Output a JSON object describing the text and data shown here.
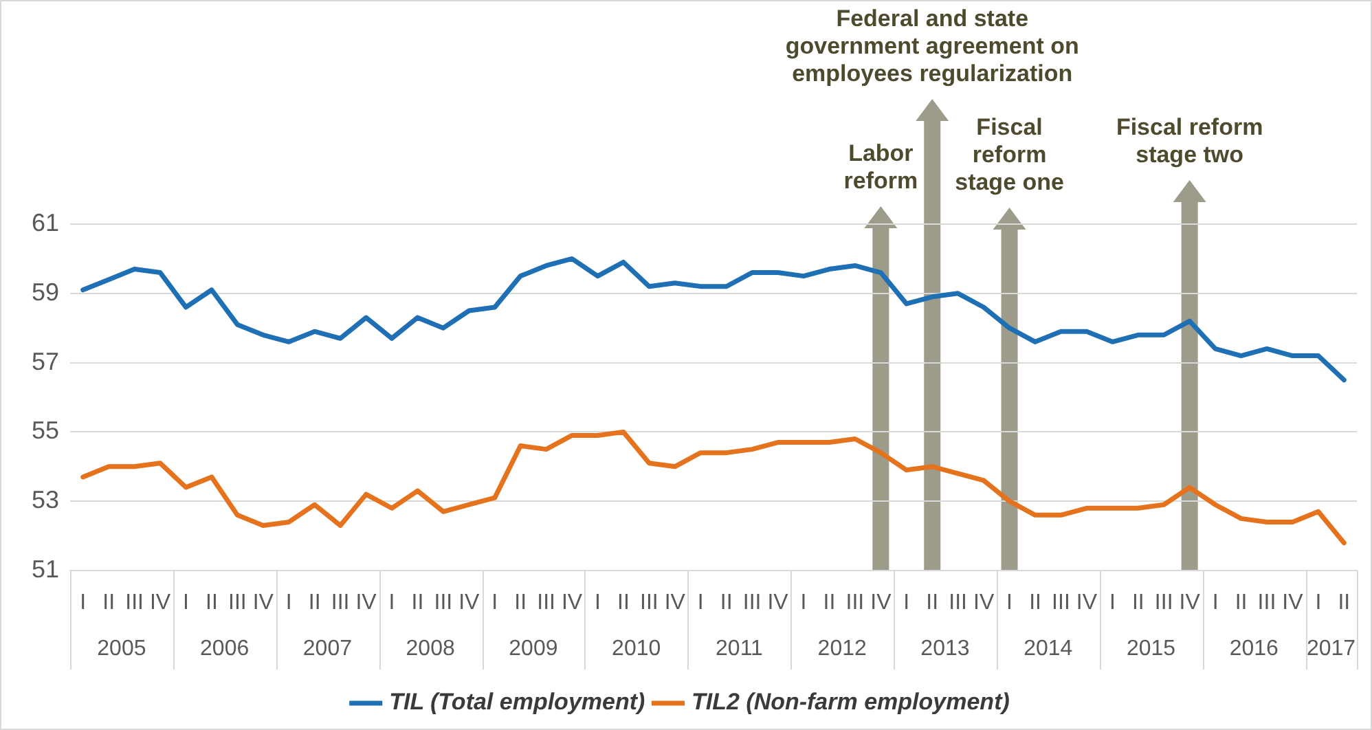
{
  "chart_data": {
    "type": "line",
    "categories": [
      "I",
      "II",
      "III",
      "IV",
      "I",
      "II",
      "III",
      "IV",
      "I",
      "II",
      "III",
      "IV",
      "I",
      "II",
      "III",
      "IV",
      "I",
      "II",
      "III",
      "IV",
      "I",
      "II",
      "III",
      "IV",
      "I",
      "II",
      "III",
      "IV",
      "I",
      "II",
      "III",
      "IV",
      "I",
      "II",
      "III",
      "IV",
      "I",
      "II",
      "III",
      "IV",
      "I",
      "II",
      "III",
      "IV",
      "I",
      "II",
      "III",
      "IV",
      "I",
      "II"
    ],
    "series": [
      {
        "name": "TIL (Total employment)",
        "color": "#1f6fb5",
        "values": [
          59.1,
          59.4,
          59.7,
          59.6,
          58.6,
          59.1,
          58.1,
          57.8,
          57.6,
          57.9,
          57.7,
          58.3,
          57.7,
          58.3,
          58.0,
          58.5,
          58.6,
          59.5,
          59.8,
          60.0,
          59.5,
          59.9,
          59.2,
          59.3,
          59.2,
          59.2,
          59.6,
          59.6,
          59.5,
          59.7,
          59.8,
          59.6,
          58.7,
          58.9,
          59.0,
          58.6,
          58.0,
          57.6,
          57.9,
          57.9,
          57.6,
          57.8,
          57.8,
          58.2,
          57.4,
          57.2,
          57.4,
          57.2,
          57.2,
          56.5
        ]
      },
      {
        "name": "TIL2 (Non-farm employment)",
        "color": "#e5731e",
        "values": [
          53.7,
          54.0,
          54.0,
          54.1,
          53.4,
          53.7,
          52.6,
          52.3,
          52.4,
          52.9,
          52.3,
          53.2,
          52.8,
          53.3,
          52.7,
          52.9,
          53.1,
          54.6,
          54.5,
          54.9,
          54.9,
          55.0,
          54.1,
          54.0,
          54.4,
          54.4,
          54.5,
          54.7,
          54.7,
          54.7,
          54.8,
          54.4,
          53.9,
          54.0,
          53.8,
          53.6,
          53.0,
          52.6,
          52.6,
          52.8,
          52.8,
          52.8,
          52.9,
          53.4,
          52.9,
          52.5,
          52.4,
          52.4,
          52.7,
          51.8
        ]
      }
    ],
    "ylim": [
      51,
      61
    ],
    "yticks": [
      51,
      53,
      55,
      57,
      59,
      61
    ],
    "grid": "y",
    "legend": "bottom",
    "marker": "none",
    "line_style": "solid",
    "annotations": [
      "2005",
      "2006",
      "2007",
      "2008",
      "2009",
      "2010",
      "2011",
      "2012",
      "2013",
      "2014",
      "2015",
      "2016",
      "2017",
      "Labor reform",
      "Federal and state government agreement on employees regularization",
      "Fiscal reform stage one",
      "Fiscal reform stage two"
    ]
  }
}
